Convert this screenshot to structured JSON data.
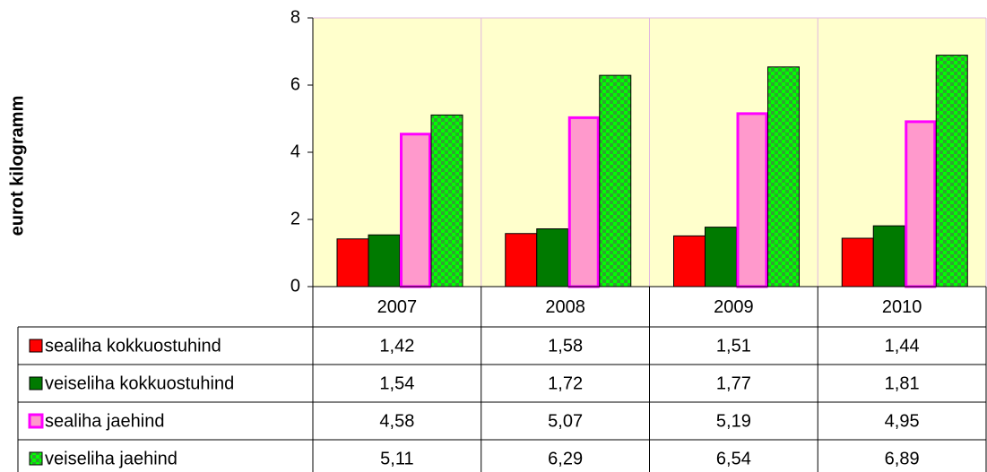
{
  "chart_data": {
    "type": "bar",
    "y_label": "eurot kilogramm",
    "categories": [
      "2007",
      "2008",
      "2009",
      "2010"
    ],
    "series": [
      {
        "name": "sealiha kokkuostuhind",
        "color": "#ff0000",
        "values": [
          1.42,
          1.58,
          1.51,
          1.44
        ],
        "value_labels": [
          "1,42",
          "1,58",
          "1,51",
          "1,44"
        ]
      },
      {
        "name": "veiseliha kokkuostuhind",
        "color": "#007a00",
        "values": [
          1.54,
          1.72,
          1.77,
          1.81
        ],
        "value_labels": [
          "1,54",
          "1,72",
          "1,77",
          "1,81"
        ]
      },
      {
        "name": "sealiha jaehind",
        "color": "#ff99cc",
        "edge_color": "#ff00ff",
        "values": [
          4.58,
          5.07,
          5.19,
          4.95
        ],
        "value_labels": [
          "4,58",
          "5,07",
          "5,19",
          "4,95"
        ]
      },
      {
        "name": "veiseliha jaehind",
        "color": "#00ff00",
        "pattern_color": "#33a033",
        "fill_pattern": "checkerboard",
        "values": [
          5.11,
          6.29,
          6.54,
          6.89
        ],
        "value_labels": [
          "5,11",
          "6,29",
          "6,54",
          "6,89"
        ]
      }
    ],
    "ylim": [
      0,
      8
    ],
    "yticks": [
      0,
      2,
      4,
      6,
      8
    ],
    "plot_background": "#ffffcc",
    "grid_color": "#e0b8e0",
    "data_table": true
  }
}
